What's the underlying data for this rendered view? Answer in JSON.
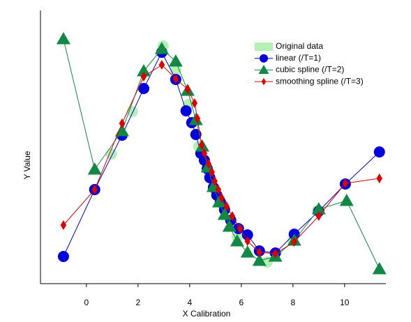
{
  "chart_data": {
    "type": "line",
    "xlabel": "X Calibration",
    "ylabel": "Y Value",
    "xlim": [
      -1.78,
      11.6
    ],
    "ylim": [
      0,
      3.92
    ],
    "xticks": [
      0,
      2,
      4,
      6,
      8,
      10
    ],
    "legend": "upper right",
    "series": [
      {
        "name": "Original data",
        "color": "#b4f0b4",
        "marker": "circle",
        "line": false,
        "x": [
          0.32,
          0.97,
          1.78,
          2.97,
          3.46,
          3.95,
          4.35,
          4.76,
          5.16,
          5.84,
          7.0,
          8.0,
          8.95,
          10.03
        ],
        "values": [
          1.35,
          1.86,
          2.47,
          3.41,
          3.07,
          2.57,
          1.97,
          1.57,
          1.17,
          0.67,
          0.31,
          0.62,
          1.05,
          1.43
        ]
      },
      {
        "name": "linear (/T=1)",
        "color": "#0000dd",
        "marker": "circle",
        "line": true,
        "x": [
          -0.89,
          0.32,
          1.38,
          2.22,
          2.92,
          3.46,
          3.86,
          4.08,
          4.24,
          4.43,
          4.57,
          4.68,
          4.78,
          4.92,
          5.05,
          5.19,
          5.35,
          5.59,
          5.89,
          6.24,
          6.7,
          7.32,
          8.05,
          9.0,
          10.03,
          11.35
        ],
        "values": [
          0.39,
          1.35,
          2.13,
          2.8,
          3.32,
          2.93,
          2.48,
          2.31,
          2.14,
          1.87,
          1.77,
          1.65,
          1.52,
          1.38,
          1.27,
          1.17,
          1.06,
          0.91,
          0.79,
          0.7,
          0.47,
          0.44,
          0.71,
          1.04,
          1.43,
          1.89
        ]
      },
      {
        "name": "cubic spline (/T=2)",
        "color": "#118844",
        "marker": "triangle",
        "line": true,
        "x": [
          -0.89,
          0.32,
          1.38,
          2.22,
          2.92,
          3.46,
          3.92,
          4.24,
          4.49,
          4.7,
          4.92,
          5.14,
          5.35,
          5.54,
          5.84,
          6.24,
          6.7,
          7.32,
          8.05,
          9.0,
          10.08,
          11.35
        ],
        "values": [
          3.51,
          1.64,
          2.19,
          3.05,
          3.37,
          3.19,
          2.77,
          2.35,
          1.97,
          1.67,
          1.39,
          1.17,
          0.99,
          0.82,
          0.61,
          0.45,
          0.33,
          0.39,
          0.62,
          1.07,
          1.19,
          0.21
        ]
      },
      {
        "name": "smoothing spline (/T=3)",
        "color": "#dd0000",
        "marker": "diamond",
        "line": true,
        "x": [
          -0.89,
          0.32,
          1.38,
          2.22,
          2.92,
          3.46,
          3.92,
          4.19,
          4.3,
          4.46,
          4.57,
          4.73,
          4.86,
          4.97,
          5.11,
          5.24,
          5.43,
          5.65,
          5.95,
          6.24,
          6.7,
          7.32,
          8.05,
          9.0,
          10.03,
          11.35
        ],
        "values": [
          0.84,
          1.35,
          2.3,
          2.97,
          3.14,
          2.94,
          2.79,
          2.59,
          2.37,
          1.99,
          1.87,
          1.72,
          1.6,
          1.47,
          1.35,
          1.23,
          1.11,
          0.97,
          0.79,
          0.61,
          0.45,
          0.43,
          0.6,
          0.97,
          1.44,
          1.51
        ]
      }
    ]
  }
}
